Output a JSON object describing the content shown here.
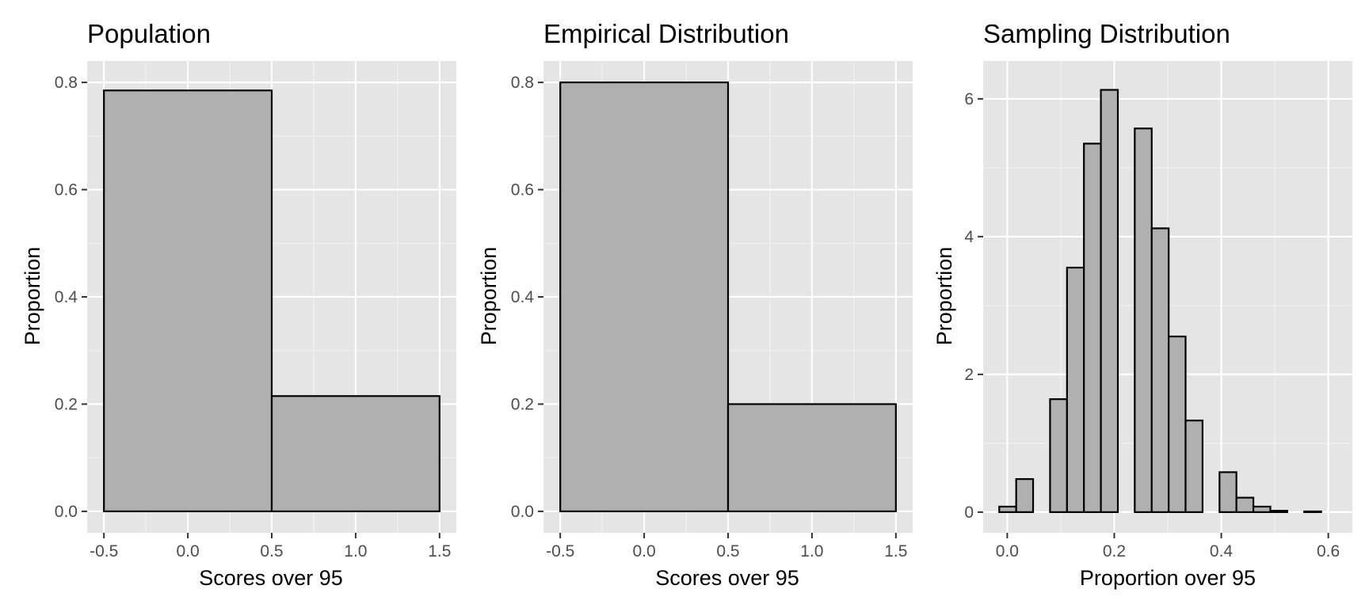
{
  "chart_data": [
    {
      "type": "bar",
      "title": "Population",
      "xlabel": "Scores over 95",
      "ylabel": "Proportion",
      "xlim": [
        -0.6,
        1.6
      ],
      "ylim": [
        -0.04,
        0.84
      ],
      "x_ticks": [
        {
          "value": -0.5,
          "label": "-0.5"
        },
        {
          "value": 0.0,
          "label": "0.0"
        },
        {
          "value": 0.5,
          "label": "0.5"
        },
        {
          "value": 1.0,
          "label": "1.0"
        },
        {
          "value": 1.5,
          "label": "1.5"
        }
      ],
      "y_ticks": [
        {
          "value": 0.0,
          "label": "0.0"
        },
        {
          "value": 0.2,
          "label": "0.2"
        },
        {
          "value": 0.4,
          "label": "0.4"
        },
        {
          "value": 0.6,
          "label": "0.6"
        },
        {
          "value": 0.8,
          "label": "0.8"
        }
      ],
      "bins": [
        {
          "x0": -0.5,
          "x1": 0.5,
          "value": 0.785
        },
        {
          "x0": 0.5,
          "x1": 1.5,
          "value": 0.215
        }
      ],
      "grid": true,
      "legend": "none"
    },
    {
      "type": "bar",
      "title": "Empirical Distribution",
      "xlabel": "Scores over 95",
      "ylabel": "Proportion",
      "xlim": [
        -0.6,
        1.6
      ],
      "ylim": [
        -0.04,
        0.84
      ],
      "x_ticks": [
        {
          "value": -0.5,
          "label": "-0.5"
        },
        {
          "value": 0.0,
          "label": "0.0"
        },
        {
          "value": 0.5,
          "label": "0.5"
        },
        {
          "value": 1.0,
          "label": "1.0"
        },
        {
          "value": 1.5,
          "label": "1.5"
        }
      ],
      "y_ticks": [
        {
          "value": 0.0,
          "label": "0.0"
        },
        {
          "value": 0.2,
          "label": "0.2"
        },
        {
          "value": 0.4,
          "label": "0.4"
        },
        {
          "value": 0.6,
          "label": "0.6"
        },
        {
          "value": 0.8,
          "label": "0.8"
        }
      ],
      "bins": [
        {
          "x0": -0.5,
          "x1": 0.5,
          "value": 0.8
        },
        {
          "x0": 0.5,
          "x1": 1.5,
          "value": 0.2
        }
      ],
      "grid": true,
      "legend": "none"
    },
    {
      "type": "bar",
      "title": "Sampling Distribution",
      "xlabel": "Proportion over 95",
      "ylabel": "Proportion",
      "xlim": [
        -0.045,
        0.645
      ],
      "ylim": [
        -0.3,
        6.55
      ],
      "x_ticks": [
        {
          "value": 0.0,
          "label": "0.0"
        },
        {
          "value": 0.2,
          "label": "0.2"
        },
        {
          "value": 0.4,
          "label": "0.4"
        },
        {
          "value": 0.6,
          "label": "0.6"
        }
      ],
      "y_ticks": [
        {
          "value": 0,
          "label": "0"
        },
        {
          "value": 2,
          "label": "2"
        },
        {
          "value": 4,
          "label": "4"
        },
        {
          "value": 6,
          "label": "6"
        }
      ],
      "bins": [
        {
          "x0": -0.015,
          "x1": 0.0167,
          "value": 0.08
        },
        {
          "x0": 0.0167,
          "x1": 0.0483,
          "value": 0.48
        },
        {
          "x0": 0.0483,
          "x1": 0.08,
          "value": 0.0
        },
        {
          "x0": 0.08,
          "x1": 0.1117,
          "value": 1.64
        },
        {
          "x0": 0.1117,
          "x1": 0.1433,
          "value": 3.55
        },
        {
          "x0": 0.1433,
          "x1": 0.175,
          "value": 5.35
        },
        {
          "x0": 0.175,
          "x1": 0.2067,
          "value": 6.13
        },
        {
          "x0": 0.2067,
          "x1": 0.2383,
          "value": 0.0
        },
        {
          "x0": 0.2383,
          "x1": 0.27,
          "value": 5.57
        },
        {
          "x0": 0.27,
          "x1": 0.3017,
          "value": 4.12
        },
        {
          "x0": 0.3017,
          "x1": 0.3333,
          "value": 2.55
        },
        {
          "x0": 0.3333,
          "x1": 0.365,
          "value": 1.33
        },
        {
          "x0": 0.365,
          "x1": 0.3967,
          "value": 0.0
        },
        {
          "x0": 0.3967,
          "x1": 0.4283,
          "value": 0.58
        },
        {
          "x0": 0.4283,
          "x1": 0.46,
          "value": 0.21
        },
        {
          "x0": 0.46,
          "x1": 0.4917,
          "value": 0.08
        },
        {
          "x0": 0.4917,
          "x1": 0.5233,
          "value": 0.02
        },
        {
          "x0": 0.5233,
          "x1": 0.555,
          "value": 0.0
        },
        {
          "x0": 0.555,
          "x1": 0.5867,
          "value": 0.01
        },
        {
          "x0": 0.5867,
          "x1": 0.6183,
          "value": 0.0
        }
      ],
      "grid": true,
      "legend": "none"
    }
  ]
}
